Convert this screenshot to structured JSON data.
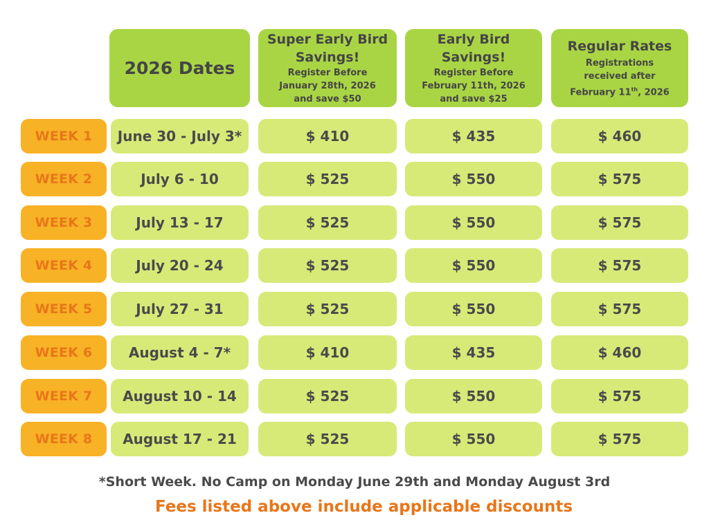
{
  "headers": {
    "dates": "2026 Dates",
    "super_early": {
      "title_line1": "Super Early Bird",
      "title_line2": "Savings!",
      "sub_line1": "Register Before",
      "sub_line2": "January 28th, 2026",
      "sub_line3": "and save $50"
    },
    "early": {
      "title_line1": "Early Bird",
      "title_line2": "Savings!",
      "sub_line1": "Register Before",
      "sub_line2": "February 11th, 2026",
      "sub_line3": "and save $25"
    },
    "regular": {
      "title": "Regular Rates",
      "sub_line1": "Registrations",
      "sub_line2": "received after",
      "sub_line3_pre": "February 11",
      "sub_line3_sup": "th",
      "sub_line3_post": ", 2026"
    }
  },
  "rows": [
    {
      "week": "WEEK 1",
      "dates": "June 30 - July 3*",
      "super_early": "$ 410",
      "early": "$ 435",
      "regular": "$ 460"
    },
    {
      "week": "WEEK 2",
      "dates": "July 6 - 10",
      "super_early": "$ 525",
      "early": "$ 550",
      "regular": "$ 575"
    },
    {
      "week": "WEEK 3",
      "dates": "July 13 - 17",
      "super_early": "$ 525",
      "early": "$ 550",
      "regular": "$ 575"
    },
    {
      "week": "WEEK 4",
      "dates": "July 20 - 24",
      "super_early": "$ 525",
      "early": "$ 550",
      "regular": "$ 575"
    },
    {
      "week": "WEEK 5",
      "dates": "July 27 - 31",
      "super_early": "$ 525",
      "early": "$ 550",
      "regular": "$ 575"
    },
    {
      "week": "WEEK 6",
      "dates": "August 4 - 7*",
      "super_early": "$ 410",
      "early": "$ 435",
      "regular": "$ 460"
    },
    {
      "week": "WEEK 7",
      "dates": "August 10 - 14",
      "super_early": "$ 525",
      "early": "$ 550",
      "regular": "$ 575"
    },
    {
      "week": "WEEK 8",
      "dates": "August 17 - 21",
      "super_early": "$ 525",
      "early": "$ 550",
      "regular": "$ 575"
    }
  ],
  "footnote": "*Short Week. No Camp on Monday June 29th and Monday August 3rd",
  "discount_note": "Fees listed above include applicable discounts",
  "colors": {
    "header_green": "#a9d545",
    "cell_green": "#d7ea78",
    "week_orange": "#f8b226",
    "week_text": "#e8761a",
    "text_dark": "#4a4a4a"
  }
}
